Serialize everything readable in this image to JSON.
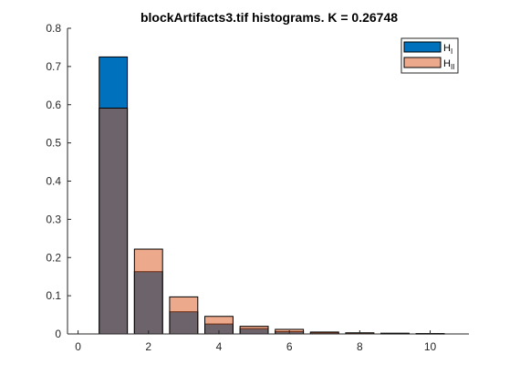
{
  "chart_data": {
    "type": "bar",
    "title": "blockArtifacts3.tif histograms. K = 0.26748",
    "xlabel": "",
    "ylabel": "",
    "xlim": [
      -0.3,
      11.1
    ],
    "ylim": [
      0,
      0.8
    ],
    "xticks": [
      0,
      2,
      4,
      6,
      8,
      10
    ],
    "yticks": [
      0,
      0.1,
      0.2,
      0.3,
      0.4,
      0.5,
      0.6,
      0.7,
      0.8
    ],
    "xtick_labels": [
      "0",
      "2",
      "4",
      "6",
      "8",
      "10"
    ],
    "ytick_labels": [
      "0",
      "0.1",
      "0.2",
      "0.3",
      "0.4",
      "0.5",
      "0.6",
      "0.7",
      "0.8"
    ],
    "bar_width": 0.8,
    "legend_position": "top-right",
    "categories": [
      1,
      2,
      3,
      4,
      5,
      6,
      7,
      8,
      9,
      10
    ],
    "series": [
      {
        "name": "H",
        "subscript": "I",
        "values": [
          0.725,
          0.163,
          0.058,
          0.026,
          0.014,
          0.006,
          0.003,
          0.002,
          0.001,
          0.001
        ],
        "color": "#0072BD",
        "opacity": 1
      },
      {
        "name": "H",
        "subscript": "II",
        "values": [
          0.591,
          0.222,
          0.097,
          0.046,
          0.02,
          0.012,
          0.005,
          0.003,
          0.002,
          0.001
        ],
        "color": "#D95319",
        "opacity": 0.5
      }
    ]
  }
}
